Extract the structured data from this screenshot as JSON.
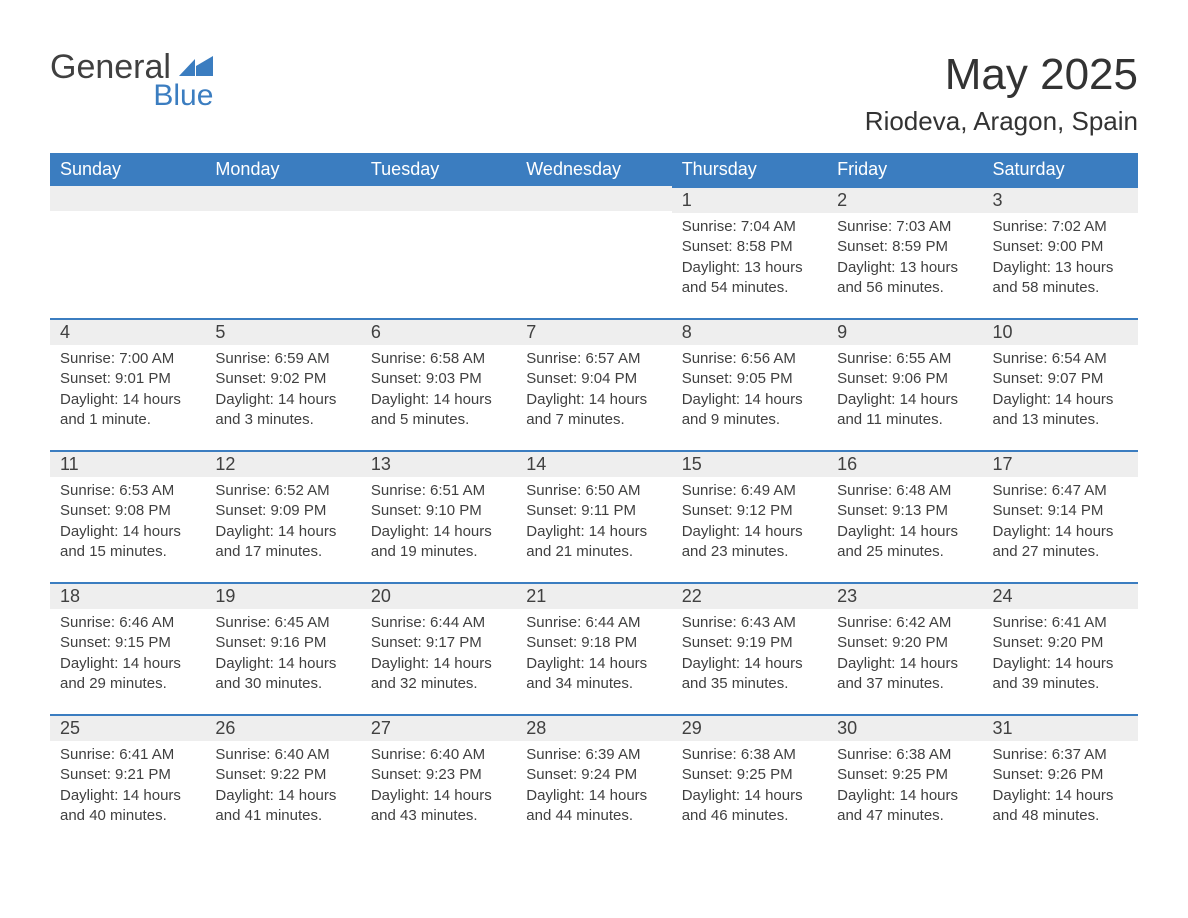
{
  "brand": {
    "word1": "General",
    "word2": "Blue",
    "icon_color": "#3b7dc0"
  },
  "title": "May 2025",
  "location": "Riodeva, Aragon, Spain",
  "colors": {
    "header_bg": "#3b7dc0",
    "header_text": "#ffffff",
    "daynum_bg": "#eeeeee",
    "cell_border_top": "#3b7dc0",
    "body_text": "#404040",
    "page_bg": "#ffffff"
  },
  "typography": {
    "title_fontsize": 44,
    "location_fontsize": 26,
    "weekday_fontsize": 18,
    "daynum_fontsize": 18,
    "content_fontsize": 15
  },
  "weekdays": [
    "Sunday",
    "Monday",
    "Tuesday",
    "Wednesday",
    "Thursday",
    "Friday",
    "Saturday"
  ],
  "labels": {
    "sunrise": "Sunrise:",
    "sunset": "Sunset:",
    "daylight": "Daylight:"
  },
  "weeks": [
    [
      {
        "empty": true
      },
      {
        "empty": true
      },
      {
        "empty": true
      },
      {
        "empty": true
      },
      {
        "day": "1",
        "sunrise": "7:04 AM",
        "sunset": "8:58 PM",
        "daylight": "13 hours and 54 minutes."
      },
      {
        "day": "2",
        "sunrise": "7:03 AM",
        "sunset": "8:59 PM",
        "daylight": "13 hours and 56 minutes."
      },
      {
        "day": "3",
        "sunrise": "7:02 AM",
        "sunset": "9:00 PM",
        "daylight": "13 hours and 58 minutes."
      }
    ],
    [
      {
        "day": "4",
        "sunrise": "7:00 AM",
        "sunset": "9:01 PM",
        "daylight": "14 hours and 1 minute."
      },
      {
        "day": "5",
        "sunrise": "6:59 AM",
        "sunset": "9:02 PM",
        "daylight": "14 hours and 3 minutes."
      },
      {
        "day": "6",
        "sunrise": "6:58 AM",
        "sunset": "9:03 PM",
        "daylight": "14 hours and 5 minutes."
      },
      {
        "day": "7",
        "sunrise": "6:57 AM",
        "sunset": "9:04 PM",
        "daylight": "14 hours and 7 minutes."
      },
      {
        "day": "8",
        "sunrise": "6:56 AM",
        "sunset": "9:05 PM",
        "daylight": "14 hours and 9 minutes."
      },
      {
        "day": "9",
        "sunrise": "6:55 AM",
        "sunset": "9:06 PM",
        "daylight": "14 hours and 11 minutes."
      },
      {
        "day": "10",
        "sunrise": "6:54 AM",
        "sunset": "9:07 PM",
        "daylight": "14 hours and 13 minutes."
      }
    ],
    [
      {
        "day": "11",
        "sunrise": "6:53 AM",
        "sunset": "9:08 PM",
        "daylight": "14 hours and 15 minutes."
      },
      {
        "day": "12",
        "sunrise": "6:52 AM",
        "sunset": "9:09 PM",
        "daylight": "14 hours and 17 minutes."
      },
      {
        "day": "13",
        "sunrise": "6:51 AM",
        "sunset": "9:10 PM",
        "daylight": "14 hours and 19 minutes."
      },
      {
        "day": "14",
        "sunrise": "6:50 AM",
        "sunset": "9:11 PM",
        "daylight": "14 hours and 21 minutes."
      },
      {
        "day": "15",
        "sunrise": "6:49 AM",
        "sunset": "9:12 PM",
        "daylight": "14 hours and 23 minutes."
      },
      {
        "day": "16",
        "sunrise": "6:48 AM",
        "sunset": "9:13 PM",
        "daylight": "14 hours and 25 minutes."
      },
      {
        "day": "17",
        "sunrise": "6:47 AM",
        "sunset": "9:14 PM",
        "daylight": "14 hours and 27 minutes."
      }
    ],
    [
      {
        "day": "18",
        "sunrise": "6:46 AM",
        "sunset": "9:15 PM",
        "daylight": "14 hours and 29 minutes."
      },
      {
        "day": "19",
        "sunrise": "6:45 AM",
        "sunset": "9:16 PM",
        "daylight": "14 hours and 30 minutes."
      },
      {
        "day": "20",
        "sunrise": "6:44 AM",
        "sunset": "9:17 PM",
        "daylight": "14 hours and 32 minutes."
      },
      {
        "day": "21",
        "sunrise": "6:44 AM",
        "sunset": "9:18 PM",
        "daylight": "14 hours and 34 minutes."
      },
      {
        "day": "22",
        "sunrise": "6:43 AM",
        "sunset": "9:19 PM",
        "daylight": "14 hours and 35 minutes."
      },
      {
        "day": "23",
        "sunrise": "6:42 AM",
        "sunset": "9:20 PM",
        "daylight": "14 hours and 37 minutes."
      },
      {
        "day": "24",
        "sunrise": "6:41 AM",
        "sunset": "9:20 PM",
        "daylight": "14 hours and 39 minutes."
      }
    ],
    [
      {
        "day": "25",
        "sunrise": "6:41 AM",
        "sunset": "9:21 PM",
        "daylight": "14 hours and 40 minutes."
      },
      {
        "day": "26",
        "sunrise": "6:40 AM",
        "sunset": "9:22 PM",
        "daylight": "14 hours and 41 minutes."
      },
      {
        "day": "27",
        "sunrise": "6:40 AM",
        "sunset": "9:23 PM",
        "daylight": "14 hours and 43 minutes."
      },
      {
        "day": "28",
        "sunrise": "6:39 AM",
        "sunset": "9:24 PM",
        "daylight": "14 hours and 44 minutes."
      },
      {
        "day": "29",
        "sunrise": "6:38 AM",
        "sunset": "9:25 PM",
        "daylight": "14 hours and 46 minutes."
      },
      {
        "day": "30",
        "sunrise": "6:38 AM",
        "sunset": "9:25 PM",
        "daylight": "14 hours and 47 minutes."
      },
      {
        "day": "31",
        "sunrise": "6:37 AM",
        "sunset": "9:26 PM",
        "daylight": "14 hours and 48 minutes."
      }
    ]
  ]
}
